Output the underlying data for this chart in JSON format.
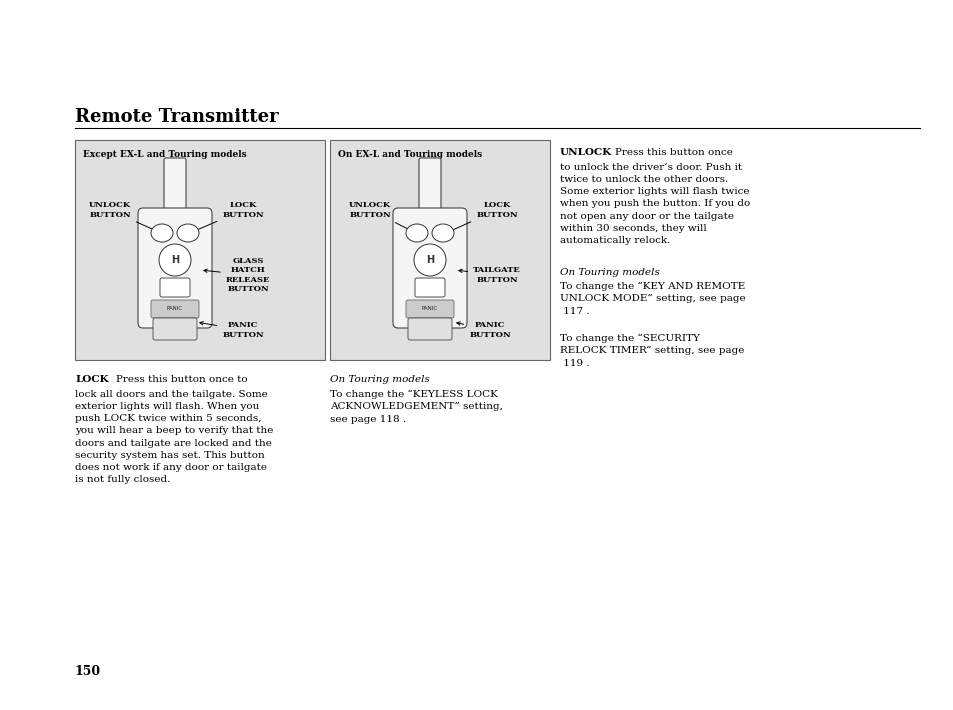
{
  "title": "Remote Transmitter",
  "page_number": "150",
  "background_color": "#ffffff",
  "box_bg_color": "#e0e0e0",
  "box1_header": "Except EX-L and Touring models",
  "box2_header": "On EX-L and Touring models",
  "lock_text_bold": "LOCK",
  "lock_first_line": "    Press this button once to",
  "lock_body": "lock all doors and the tailgate. Some\nexterior lights will flash. When you\npush LOCK twice within 5 seconds,\nyou will hear a beep to verify that the\ndoors and tailgate are locked and the\nsecurity system has set. This button\ndoes not work if any door or tailgate\nis not fully closed.",
  "touring_note1_italic": "On Touring models",
  "touring_note1_body": "To change the “KEYLESS LOCK\nACKNOWLEDGEMENT” setting,\nsee page 118 .",
  "unlock_text_bold": "UNLOCK",
  "unlock_first_line": "    Press this button once",
  "unlock_body": "to unlock the driver’s door. Push it\ntwice to unlock the other doors.\nSome exterior lights will flash twice\nwhen you push the button. If you do\nnot open any door or the tailgate\nwithin 30 seconds, they will\nautomatically relock.",
  "touring_note2_italic": "On Touring models",
  "touring_note2_body": "To change the “KEY AND REMOTE\nUNLOCK MODE” setting, see page\n 117 .",
  "touring_note3_body": "To change the “SECURITY\nRELOCK TIMER” setting, see page\n 119 ."
}
